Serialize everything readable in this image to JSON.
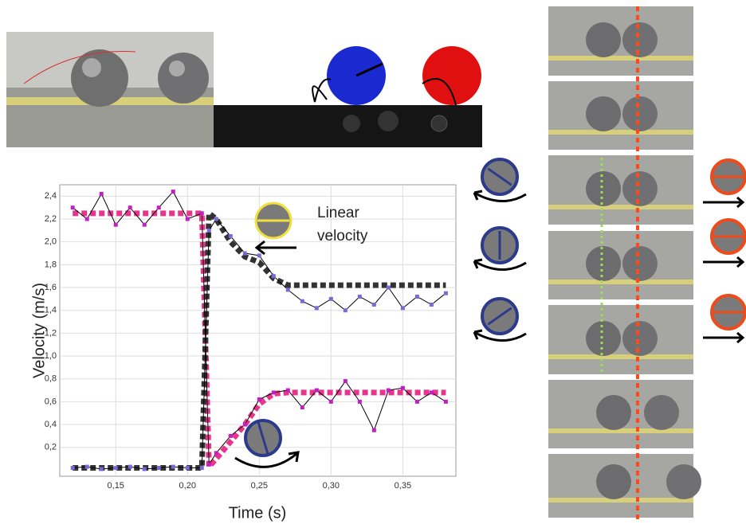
{
  "chart_data": {
    "type": "line",
    "x_label": "Time (s)",
    "y_label": "Velocity (m/s)",
    "annotation": [
      "Linear",
      "velocity"
    ],
    "xlim": [
      0.111,
      0.387
    ],
    "ylim": [
      -0.053,
      2.5
    ],
    "xticks": [
      {
        "value": 0.15,
        "label": "0,15"
      },
      {
        "value": 0.2,
        "label": "0,20"
      },
      {
        "value": 0.25,
        "label": "0,25"
      },
      {
        "value": 0.3,
        "label": "0,30"
      },
      {
        "value": 0.35,
        "label": "0,35"
      }
    ],
    "yticks": [
      {
        "value": 0.2,
        "label": "0,2"
      },
      {
        "value": 0.4,
        "label": "0,4"
      },
      {
        "value": 0.6,
        "label": "0,6"
      },
      {
        "value": 0.8,
        "label": "0,8"
      },
      {
        "value": 1.0,
        "label": "1,0"
      },
      {
        "value": 1.2,
        "label": "1,2"
      },
      {
        "value": 1.4,
        "label": "1,4"
      },
      {
        "value": 1.6,
        "label": "1,6"
      },
      {
        "value": 1.8,
        "label": "1,8"
      },
      {
        "value": 2.0,
        "label": "2,0"
      },
      {
        "value": 2.2,
        "label": "2,2"
      },
      {
        "value": 2.4,
        "label": "2,4"
      }
    ],
    "grid": true,
    "x": [
      0.12,
      0.13,
      0.14,
      0.15,
      0.16,
      0.17,
      0.18,
      0.19,
      0.2,
      0.21,
      0.215,
      0.22,
      0.23,
      0.24,
      0.25,
      0.26,
      0.27,
      0.28,
      0.29,
      0.3,
      0.31,
      0.32,
      0.33,
      0.34,
      0.35,
      0.36,
      0.37,
      0.38
    ],
    "series": [
      {
        "style": "dotted",
        "color": "#e8348c",
        "values": [
          2.25,
          2.25,
          2.25,
          2.25,
          2.25,
          2.25,
          2.25,
          2.25,
          2.25,
          2.25,
          0.03,
          0.1,
          0.25,
          0.4,
          0.58,
          0.67,
          0.68,
          0.68,
          0.68,
          0.68,
          0.68,
          0.68,
          0.68,
          0.68,
          0.68,
          0.68,
          0.68,
          0.68
        ]
      },
      {
        "style": "dotted",
        "color": "#333333",
        "values": [
          0.02,
          0.02,
          0.02,
          0.02,
          0.02,
          0.02,
          0.02,
          0.02,
          0.02,
          0.02,
          2.25,
          2.2,
          2.0,
          1.87,
          1.82,
          1.68,
          1.62,
          1.62,
          1.62,
          1.62,
          1.62,
          1.62,
          1.62,
          1.62,
          1.62,
          1.62,
          1.62,
          1.62
        ]
      },
      {
        "style": "line-markers",
        "color": "#000000",
        "marker_color": "#c020c0",
        "values": [
          2.3,
          2.2,
          2.42,
          2.15,
          2.3,
          2.15,
          2.3,
          2.44,
          2.2,
          2.25,
          0.05,
          0.15,
          0.3,
          0.4,
          0.62,
          0.68,
          0.7,
          0.55,
          0.7,
          0.6,
          0.78,
          0.6,
          0.35,
          0.7,
          0.72,
          0.6,
          0.68,
          0.6
        ]
      },
      {
        "style": "line-markers",
        "color": "#000000",
        "marker_color": "#7a6ad8",
        "values": [
          0.02,
          0.03,
          0.01,
          0.02,
          0.03,
          0.01,
          0.02,
          0.03,
          0.02,
          0.02,
          2.1,
          2.2,
          2.05,
          1.9,
          1.88,
          1.7,
          1.58,
          1.48,
          1.42,
          1.5,
          1.4,
          1.52,
          1.45,
          1.6,
          1.42,
          1.52,
          1.45,
          1.55
        ]
      }
    ]
  }
}
